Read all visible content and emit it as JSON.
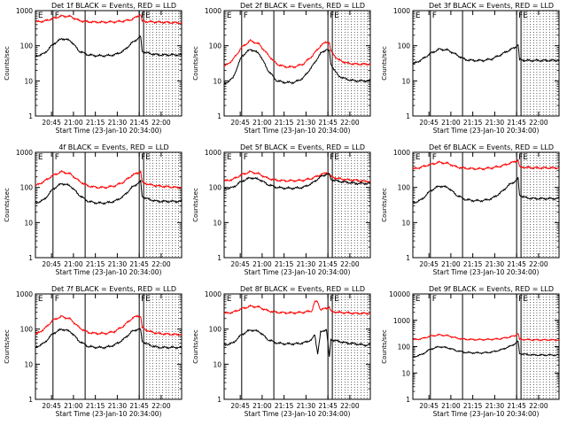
{
  "shared": {
    "ylabel": "Counts/sec",
    "xlabel": "Start Time (23-Jan-10 20:34:00)",
    "x_ticks": [
      "20:45",
      "21:00",
      "21:15",
      "21:30",
      "21:45",
      "22:00"
    ],
    "x_tick_minutes": [
      11,
      26,
      41,
      56,
      71,
      86
    ],
    "x_range_minutes": [
      0,
      100
    ],
    "region_marks": {
      "E_left": {
        "label": "E",
        "t": 0.5
      },
      "F_left": {
        "label": "F",
        "t": 12
      },
      "lines": [
        12,
        34,
        71,
        74
      ],
      "F_right": {
        "label": "F",
        "t": 71
      },
      "E_right": {
        "label": "E",
        "t": 74
      },
      "dotted_start": 74
    },
    "series_colors": {
      "events": "#000000",
      "lld": "#ff0000"
    },
    "series_names": {
      "events": "Events",
      "lld": "LLD"
    }
  },
  "chart_data": [
    {
      "type": "line",
      "title": "Det 1f BLACK = Events, RED = LLD",
      "yscale": "log",
      "ylim": [
        1,
        1000
      ],
      "y_ticks": [
        "1",
        "10",
        "100",
        "1000"
      ],
      "x": [
        0,
        6,
        12,
        18,
        24,
        30,
        36,
        42,
        48,
        54,
        60,
        66,
        70,
        72,
        73,
        78,
        84,
        90,
        96,
        100
      ],
      "series": [
        {
          "name": "LLD",
          "color": "#ff0000",
          "values": [
            480,
            500,
            600,
            700,
            680,
            520,
            480,
            470,
            470,
            480,
            500,
            560,
            700,
            780,
            500,
            480,
            470,
            460,
            450,
            450
          ]
        },
        {
          "name": "Events",
          "color": "#000000",
          "values": [
            50,
            60,
            110,
            160,
            140,
            70,
            55,
            52,
            52,
            55,
            70,
            120,
            160,
            180,
            70,
            60,
            55,
            55,
            55,
            55
          ]
        }
      ]
    },
    {
      "type": "line",
      "title": "Det 2f BLACK = Events, RED = LLD",
      "yscale": "log",
      "ylim": [
        1,
        1000
      ],
      "y_ticks": [
        "1",
        "10",
        "100",
        "1000"
      ],
      "x": [
        0,
        6,
        12,
        18,
        24,
        30,
        36,
        42,
        48,
        54,
        60,
        66,
        70,
        72,
        73,
        78,
        84,
        90,
        96,
        100
      ],
      "series": [
        {
          "name": "LLD",
          "color": "#ff0000",
          "values": [
            25,
            40,
            90,
            140,
            110,
            55,
            30,
            25,
            25,
            30,
            50,
            100,
            130,
            120,
            70,
            40,
            32,
            30,
            30,
            30
          ]
        },
        {
          "name": "Events",
          "color": "#000000",
          "values": [
            8,
            12,
            50,
            80,
            60,
            20,
            10,
            9,
            9,
            12,
            25,
            60,
            80,
            70,
            30,
            14,
            11,
            10,
            10,
            10
          ]
        }
      ]
    },
    {
      "type": "line",
      "title": "Det 3f BLACK = Events, RED = LLD",
      "yscale": "log",
      "ylim": [
        1,
        1000
      ],
      "y_ticks": [
        "1",
        "10",
        "100",
        "1000"
      ],
      "x": [
        0,
        6,
        12,
        18,
        24,
        30,
        36,
        42,
        48,
        54,
        60,
        66,
        70,
        72,
        73,
        78,
        84,
        90,
        96,
        100
      ],
      "series": [
        {
          "name": "Events",
          "color": "#000000",
          "values": [
            30,
            40,
            60,
            80,
            75,
            55,
            40,
            38,
            38,
            42,
            55,
            75,
            90,
            110,
            40,
            38,
            38,
            38,
            38,
            38
          ]
        }
      ]
    },
    {
      "type": "line",
      "title": "4f BLACK = Events, RED = LLD",
      "yscale": "log",
      "ylim": [
        1,
        1000
      ],
      "y_ticks": [
        "1",
        "10",
        "100",
        "1000"
      ],
      "x": [
        0,
        6,
        12,
        18,
        24,
        30,
        36,
        42,
        48,
        54,
        60,
        66,
        70,
        72,
        73,
        78,
        84,
        90,
        96,
        100
      ],
      "series": [
        {
          "name": "LLD",
          "color": "#ff0000",
          "values": [
            110,
            150,
            220,
            280,
            240,
            150,
            110,
            100,
            100,
            110,
            140,
            220,
            260,
            280,
            140,
            120,
            110,
            105,
            100,
            100
          ]
        },
        {
          "name": "Events",
          "color": "#000000",
          "values": [
            35,
            45,
            90,
            130,
            110,
            60,
            40,
            36,
            36,
            40,
            55,
            100,
            130,
            150,
            55,
            45,
            40,
            40,
            40,
            40
          ]
        }
      ]
    },
    {
      "type": "line",
      "title": "Det 5f BLACK = Events, RED = LLD",
      "yscale": "log",
      "ylim": [
        1,
        1000
      ],
      "y_ticks": [
        "1",
        "10",
        "100",
        "1000"
      ],
      "x": [
        0,
        6,
        12,
        18,
        24,
        30,
        36,
        42,
        48,
        54,
        60,
        66,
        70,
        72,
        73,
        78,
        84,
        90,
        96,
        100
      ],
      "series": [
        {
          "name": "LLD",
          "color": "#ff0000",
          "values": [
            150,
            170,
            230,
            280,
            240,
            180,
            160,
            155,
            155,
            160,
            180,
            230,
            260,
            250,
            200,
            180,
            165,
            160,
            150,
            150
          ]
        },
        {
          "name": "Events",
          "color": "#000000",
          "values": [
            90,
            100,
            150,
            190,
            170,
            120,
            100,
            95,
            95,
            100,
            130,
            200,
            240,
            230,
            170,
            150,
            140,
            130,
            130,
            130
          ]
        }
      ]
    },
    {
      "type": "line",
      "title": "Det 6f BLACK = Events, RED = LLD",
      "yscale": "log",
      "ylim": [
        1,
        1000
      ],
      "y_ticks": [
        "1",
        "10",
        "100",
        "1000"
      ],
      "x": [
        0,
        6,
        12,
        18,
        24,
        30,
        36,
        42,
        48,
        54,
        60,
        66,
        70,
        72,
        73,
        78,
        84,
        90,
        96,
        100
      ],
      "series": [
        {
          "name": "LLD",
          "color": "#ff0000",
          "values": [
            330,
            380,
            450,
            520,
            480,
            380,
            350,
            340,
            340,
            360,
            400,
            480,
            550,
            600,
            380,
            370,
            360,
            360,
            360,
            360
          ]
        },
        {
          "name": "Events",
          "color": "#000000",
          "values": [
            35,
            45,
            80,
            110,
            100,
            60,
            45,
            42,
            42,
            48,
            70,
            120,
            150,
            180,
            60,
            50,
            48,
            48,
            48,
            48
          ]
        }
      ]
    },
    {
      "type": "line",
      "title": "Det 7f BLACK = Events, RED = LLD",
      "yscale": "log",
      "ylim": [
        1,
        1000
      ],
      "y_ticks": [
        "1",
        "10",
        "100",
        "1000"
      ],
      "x": [
        0,
        6,
        12,
        18,
        24,
        30,
        36,
        42,
        48,
        54,
        60,
        66,
        70,
        72,
        73,
        78,
        84,
        90,
        96,
        100
      ],
      "series": [
        {
          "name": "LLD",
          "color": "#ff0000",
          "values": [
            70,
            100,
            180,
            230,
            190,
            110,
            80,
            75,
            75,
            85,
            120,
            200,
            240,
            230,
            110,
            85,
            75,
            72,
            70,
            70
          ]
        },
        {
          "name": "Events",
          "color": "#000000",
          "values": [
            30,
            40,
            75,
            100,
            85,
            45,
            32,
            30,
            30,
            35,
            50,
            85,
            100,
            95,
            45,
            35,
            30,
            30,
            30,
            30
          ]
        }
      ]
    },
    {
      "type": "line",
      "title": "Det 8f BLACK = Events, RED = LLD",
      "yscale": "log",
      "ylim": [
        1,
        1000
      ],
      "y_ticks": [
        "1",
        "10",
        "100",
        "1000"
      ],
      "x": [
        0,
        6,
        12,
        18,
        24,
        30,
        36,
        42,
        48,
        54,
        60,
        62,
        64,
        66,
        70,
        72,
        73,
        78,
        84,
        90,
        96,
        100
      ],
      "series": [
        {
          "name": "LLD",
          "color": "#ff0000",
          "values": [
            280,
            300,
            380,
            450,
            420,
            330,
            300,
            290,
            290,
            300,
            330,
            600,
            600,
            350,
            400,
            420,
            320,
            300,
            290,
            280,
            280,
            280
          ]
        },
        {
          "name": "Events",
          "color": "#000000",
          "values": [
            35,
            40,
            70,
            95,
            85,
            50,
            40,
            38,
            38,
            40,
            50,
            70,
            20,
            80,
            100,
            15,
            50,
            45,
            40,
            38,
            35,
            35
          ]
        }
      ]
    },
    {
      "type": "line",
      "title": "Det 9f BLACK = Events, RED = LLD",
      "yscale": "log",
      "ylim": [
        1,
        10000
      ],
      "y_ticks": [
        "1",
        "10",
        "100",
        "1000",
        "10000"
      ],
      "x": [
        0,
        6,
        12,
        18,
        24,
        30,
        36,
        42,
        48,
        54,
        60,
        66,
        70,
        72,
        73,
        78,
        84,
        90,
        96,
        100
      ],
      "series": [
        {
          "name": "LLD",
          "color": "#ff0000",
          "values": [
            180,
            200,
            250,
            280,
            260,
            210,
            190,
            185,
            185,
            190,
            200,
            230,
            260,
            320,
            190,
            185,
            180,
            180,
            180,
            180
          ]
        },
        {
          "name": "Events",
          "color": "#000000",
          "values": [
            40,
            50,
            80,
            100,
            90,
            70,
            60,
            58,
            58,
            62,
            75,
            100,
            130,
            160,
            55,
            50,
            48,
            48,
            48,
            48
          ]
        }
      ]
    }
  ]
}
